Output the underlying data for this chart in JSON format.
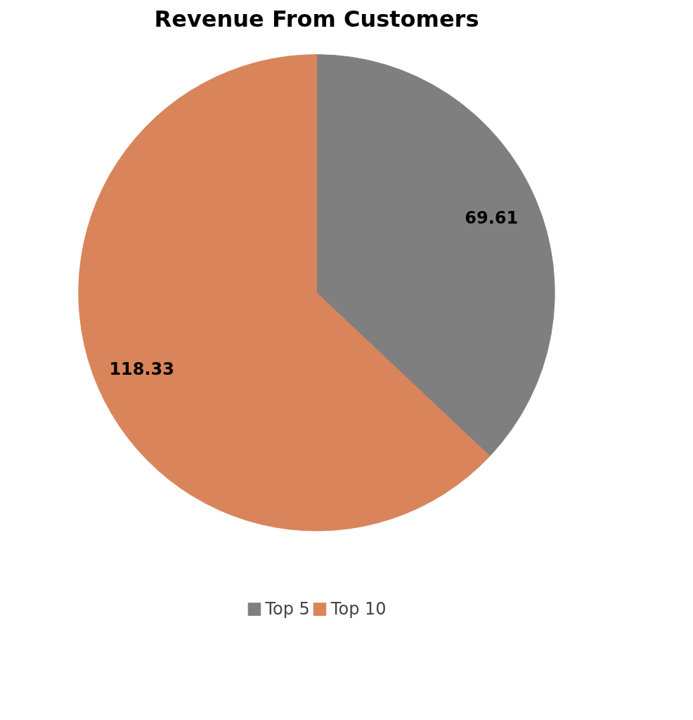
{
  "chart_data": {
    "type": "pie",
    "title": "Revenue From Customers",
    "categories": [
      "Top 5",
      "Top 10"
    ],
    "values": [
      69.61,
      118.33
    ],
    "colors": [
      "#7f7f7f",
      "#d9845b"
    ],
    "data_labels": true,
    "legend": "bottom"
  }
}
